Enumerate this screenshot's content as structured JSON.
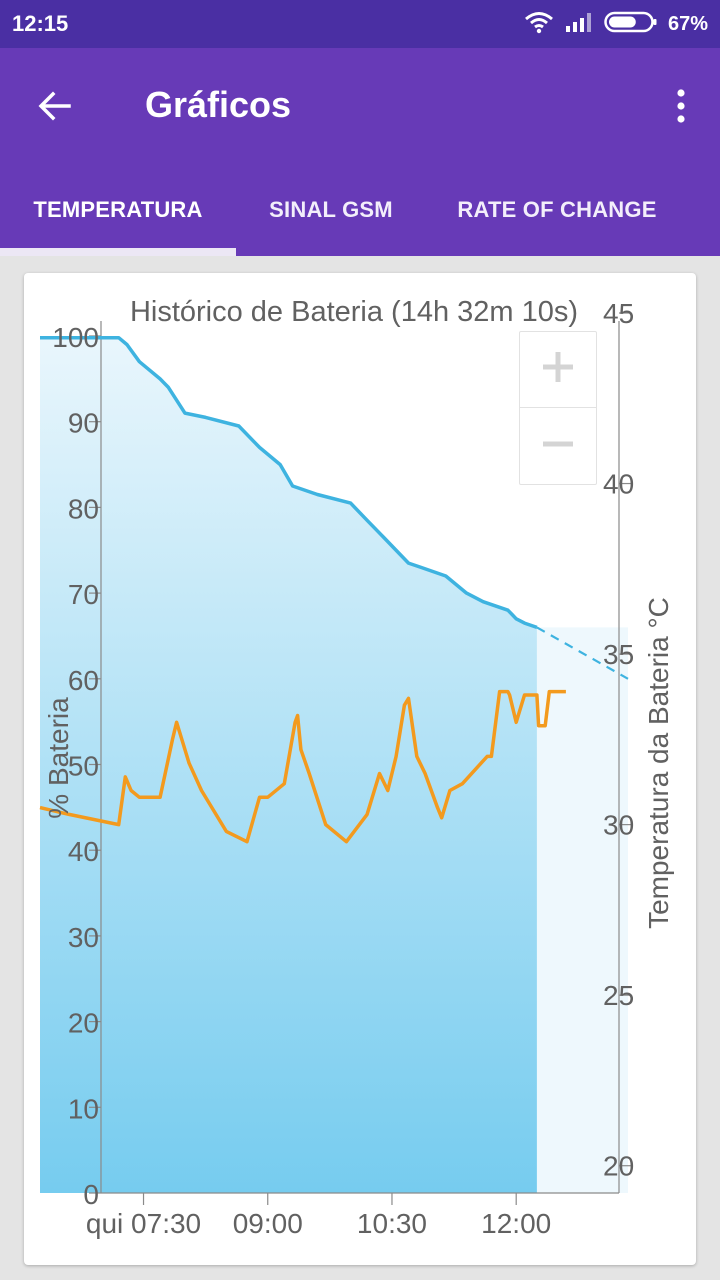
{
  "status_bar": {
    "time": "12:15",
    "battery_percent": "67%",
    "battery_level": 0.67,
    "icons": [
      "wifi-icon",
      "cellular-signal-icon",
      "battery-icon"
    ]
  },
  "app_bar": {
    "title": "Gráficos",
    "back_icon": "arrow-back-icon",
    "menu_icon": "more-vert-icon",
    "color": "#673ab7"
  },
  "tabs": [
    {
      "label": "TEMPERATURA",
      "selected": true
    },
    {
      "label": "SINAL GSM",
      "selected": false
    },
    {
      "label": "RATE OF CHANGE",
      "selected": false
    }
  ],
  "zoom": {
    "in_label": "+",
    "out_label": "−"
  },
  "colors": {
    "battery_line": "#3eb3e0",
    "temperature_line": "#f39a1e",
    "fill_top": "#e9f6fc",
    "fill_bottom": "#76ccef",
    "axis": "#8a8a8a",
    "text": "#616161"
  },
  "chart_data": {
    "type": "line",
    "title": "Histórico de Bateria (14h 32m 10s)",
    "ylabel_left": "% Bateria",
    "ylabel_right": "Temperatura da Bateria °C",
    "x_tick_labels": [
      "qui 07:30",
      "09:00",
      "10:30",
      "12:00"
    ],
    "x_ticks_hours": [
      7.5,
      9.0,
      10.5,
      12.0
    ],
    "xlim_hours": [
      6.25,
      13.35
    ],
    "ylim_left": [
      0,
      100
    ],
    "ylim_right": [
      19.2,
      45
    ],
    "left_ticks": [
      0,
      10,
      20,
      30,
      40,
      50,
      60,
      70,
      80,
      90,
      100
    ],
    "right_ticks": [
      20,
      25,
      30,
      35,
      40,
      45
    ],
    "grid": false,
    "series": [
      {
        "name": "% Bateria",
        "axis": "left",
        "fill": true,
        "x": [
          6.25,
          7.2,
          7.3,
          7.45,
          7.7,
          7.8,
          8.0,
          8.25,
          8.65,
          8.9,
          9.15,
          9.3,
          9.6,
          10.0,
          10.2,
          10.4,
          10.7,
          10.85,
          11.15,
          11.4,
          11.6,
          11.9,
          11.95,
          12.0,
          12.1,
          12.25
        ],
        "y": [
          99.8,
          99.8,
          99.0,
          97.0,
          95.0,
          94.0,
          91.0,
          90.5,
          89.5,
          87.0,
          85.0,
          82.5,
          81.5,
          80.5,
          78.5,
          76.5,
          73.5,
          73.0,
          72.0,
          70.0,
          69.0,
          68.0,
          67.5,
          67.0,
          66.5,
          66.0
        ]
      },
      {
        "name": "% Bateria (projeção)",
        "axis": "left",
        "dashed": true,
        "x": [
          12.25,
          13.35
        ],
        "y": [
          66.0,
          60.0
        ]
      },
      {
        "name": "Temperatura da Bateria °C",
        "axis": "right",
        "x": [
          6.25,
          6.6,
          7.2,
          7.28,
          7.35,
          7.45,
          7.7,
          7.85,
          7.9,
          8.05,
          8.2,
          8.5,
          8.75,
          8.9,
          9.0,
          9.2,
          9.33,
          9.36,
          9.4,
          9.5,
          9.7,
          9.95,
          10.2,
          10.35,
          10.45,
          10.55,
          10.65,
          10.7,
          10.8,
          10.9,
          11.05,
          11.1,
          11.2,
          11.35,
          11.65,
          11.7,
          11.8,
          11.9,
          11.92,
          12.0,
          12.1,
          12.25,
          12.27,
          12.35,
          12.4,
          12.42,
          12.6
        ],
        "y": [
          30.5,
          30.3,
          30.0,
          31.4,
          31.0,
          30.8,
          30.8,
          32.5,
          33.0,
          31.8,
          31.0,
          29.8,
          29.5,
          30.8,
          30.8,
          31.2,
          33.0,
          33.2,
          32.2,
          31.5,
          30.0,
          29.5,
          30.3,
          31.5,
          31.0,
          32.0,
          33.5,
          33.7,
          32.0,
          31.5,
          30.5,
          30.2,
          31.0,
          31.2,
          32.0,
          32.0,
          33.9,
          33.9,
          33.8,
          33.0,
          33.8,
          33.8,
          32.9,
          32.9,
          33.9,
          33.9,
          33.9
        ]
      }
    ]
  }
}
